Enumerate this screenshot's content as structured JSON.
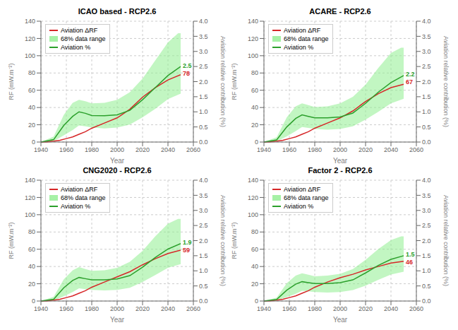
{
  "chart_data": [
    {
      "type": "line",
      "title": "ICAO based - RCP2.6",
      "xlabel": "Year",
      "ylabel": "RF (mW.m⁻²)",
      "y2label": "Aviation relative contribution (%)",
      "xlim": [
        1940,
        2060
      ],
      "xticks": [
        1940,
        1960,
        1980,
        2000,
        2020,
        2040,
        2060
      ],
      "ylim": [
        0,
        140
      ],
      "yticks": [
        0,
        20,
        40,
        60,
        80,
        100,
        120,
        140
      ],
      "y2lim": [
        0,
        4.0
      ],
      "y2ticks": [
        {
          "value": 0,
          "label": "0.0"
        },
        0.5,
        {
          "value": 1,
          "label": "1.0"
        },
        1.5,
        {
          "value": 2,
          "label": "2.0"
        },
        2.5,
        {
          "value": 3,
          "label": "3.0"
        },
        3.5,
        {
          "value": 4,
          "label": "4.0"
        }
      ],
      "grid": true,
      "legend": "upper left",
      "series": [
        {
          "name": "Aviation ΔRF",
          "type": "line",
          "color": "#d62728",
          "x": [
            1940,
            1945,
            1950,
            1955,
            1960,
            1965,
            1970,
            1975,
            1980,
            1990,
            2000,
            2010,
            2020,
            2030,
            2040,
            2050
          ],
          "values": [
            0,
            0.3,
            1.0,
            2.0,
            4.0,
            6.0,
            9.0,
            12.0,
            16.0,
            22.0,
            28.0,
            38.0,
            52.0,
            63.0,
            72.0,
            78.0
          ]
        },
        {
          "name": "68% data range",
          "type": "band",
          "axis": "y2",
          "color": "#90ee90",
          "x_upper": [
            1940,
            1950,
            1958,
            1965,
            1970,
            1975,
            1980,
            1990,
            2000,
            2010,
            2020,
            2030,
            2040,
            2048,
            2050
          ],
          "upper": [
            0,
            0.18,
            0.9,
            1.3,
            1.4,
            1.35,
            1.28,
            1.3,
            1.4,
            1.65,
            2.1,
            2.7,
            3.3,
            3.6,
            3.6
          ],
          "x_lower": [
            1940,
            1950,
            1958,
            1965,
            1970,
            1975,
            1980,
            1990,
            2000,
            2010,
            2020,
            2030,
            2040,
            2050
          ],
          "lower": [
            0,
            0.03,
            0.22,
            0.4,
            0.55,
            0.52,
            0.48,
            0.45,
            0.48,
            0.58,
            0.82,
            1.1,
            1.42,
            1.6
          ]
        },
        {
          "name": "Aviation %",
          "type": "line",
          "axis": "y2",
          "color": "#2ca02c",
          "x": [
            1940,
            1950,
            1958,
            1965,
            1970,
            1975,
            1980,
            1990,
            2000,
            2010,
            2020,
            2030,
            2040,
            2050
          ],
          "values": [
            0,
            0.08,
            0.55,
            0.85,
            1.0,
            0.95,
            0.88,
            0.87,
            0.9,
            1.05,
            1.4,
            1.8,
            2.2,
            2.5
          ]
        }
      ],
      "annotations": [
        {
          "text": "2.5",
          "color": "#2ca02c"
        },
        {
          "text": "78",
          "color": "#d62728"
        }
      ]
    },
    {
      "type": "line",
      "title": "ACARE - RCP2.6",
      "xlabel": "Year",
      "ylabel": "RF (mW.m⁻²)",
      "y2label": "Aviation relative contribution (%)",
      "xlim": [
        1940,
        2060
      ],
      "xticks": [
        1940,
        1960,
        1980,
        2000,
        2020,
        2040,
        2060
      ],
      "ylim": [
        0,
        140
      ],
      "yticks": [
        0,
        20,
        40,
        60,
        80,
        100,
        120,
        140
      ],
      "y2lim": [
        0,
        4.0
      ],
      "y2ticks": [
        {
          "value": 0,
          "label": "0.0"
        },
        0.5,
        {
          "value": 1,
          "label": "1.0"
        },
        1.5,
        {
          "value": 2,
          "label": "2.0"
        },
        2.5,
        {
          "value": 3,
          "label": "3.0"
        },
        3.5,
        {
          "value": 4,
          "label": "4.0"
        }
      ],
      "grid": true,
      "legend": "upper left",
      "series": [
        {
          "name": "Aviation ΔRF",
          "type": "line",
          "color": "#d62728",
          "x": [
            1940,
            1945,
            1950,
            1955,
            1960,
            1965,
            1970,
            1975,
            1980,
            1990,
            2000,
            2010,
            2020,
            2030,
            2040,
            2050
          ],
          "values": [
            0,
            0.3,
            1.0,
            2.0,
            4.0,
            6.0,
            9.0,
            12.0,
            16.0,
            22.0,
            28.0,
            36.0,
            47.0,
            56.0,
            63.0,
            67.0
          ]
        },
        {
          "name": "68% data range",
          "type": "band",
          "axis": "y2",
          "color": "#90ee90",
          "x_upper": [
            1940,
            1950,
            1958,
            1965,
            1970,
            1975,
            1980,
            1990,
            2000,
            2010,
            2020,
            2030,
            2040,
            2048,
            2050
          ],
          "upper": [
            0,
            0.16,
            0.82,
            1.18,
            1.28,
            1.22,
            1.16,
            1.18,
            1.28,
            1.5,
            1.9,
            2.45,
            2.95,
            3.12,
            3.12
          ],
          "x_lower": [
            1940,
            1950,
            1958,
            1965,
            1970,
            1975,
            1980,
            1990,
            2000,
            2010,
            2020,
            2030,
            2040,
            2050
          ],
          "lower": [
            0,
            0.025,
            0.19,
            0.36,
            0.5,
            0.47,
            0.43,
            0.41,
            0.43,
            0.52,
            0.74,
            1.0,
            1.28,
            1.43
          ]
        },
        {
          "name": "Aviation %",
          "type": "line",
          "axis": "y2",
          "color": "#2ca02c",
          "x": [
            1940,
            1950,
            1958,
            1965,
            1970,
            1975,
            1980,
            1990,
            2000,
            2010,
            2020,
            2030,
            2040,
            2050
          ],
          "values": [
            0,
            0.07,
            0.5,
            0.78,
            0.9,
            0.85,
            0.8,
            0.8,
            0.83,
            0.96,
            1.28,
            1.65,
            1.97,
            2.2
          ]
        }
      ],
      "annotations": [
        {
          "text": "2.2",
          "color": "#2ca02c"
        },
        {
          "text": "67",
          "color": "#d62728"
        }
      ]
    },
    {
      "type": "line",
      "title": "CNG2020 - RCP2.6",
      "xlabel": "Year",
      "ylabel": "RF (mW.m⁻²)",
      "y2label": "Aviation relative contribution (%)",
      "xlim": [
        1940,
        2060
      ],
      "xticks": [
        1940,
        1960,
        1980,
        2000,
        2020,
        2040,
        2060
      ],
      "ylim": [
        0,
        140
      ],
      "yticks": [
        0,
        20,
        40,
        60,
        80,
        100,
        120,
        140
      ],
      "y2lim": [
        0,
        4.0
      ],
      "y2ticks": [
        {
          "value": 0,
          "label": "0.0"
        },
        0.5,
        {
          "value": 1,
          "label": "1.0"
        },
        1.5,
        {
          "value": 2,
          "label": "2.0"
        },
        2.5,
        {
          "value": 3,
          "label": "3.0"
        },
        3.5,
        {
          "value": 4,
          "label": "4.0"
        }
      ],
      "grid": true,
      "legend": "upper left",
      "series": [
        {
          "name": "Aviation ΔRF",
          "type": "line",
          "color": "#d62728",
          "x": [
            1940,
            1945,
            1950,
            1955,
            1960,
            1965,
            1970,
            1975,
            1980,
            1990,
            2000,
            2010,
            2020,
            2030,
            2040,
            2050
          ],
          "values": [
            0,
            0.3,
            1.0,
            2.0,
            4.0,
            6.0,
            9.0,
            12.0,
            16.0,
            22.0,
            28.0,
            34.0,
            42.0,
            49.0,
            55.0,
            59.0
          ]
        },
        {
          "name": "68% data range",
          "type": "band",
          "axis": "y2",
          "color": "#90ee90",
          "x_upper": [
            1940,
            1950,
            1958,
            1965,
            1970,
            1975,
            1980,
            1990,
            2000,
            2010,
            2020,
            2030,
            2040,
            2048,
            2050
          ],
          "upper": [
            0,
            0.14,
            0.72,
            1.02,
            1.12,
            1.06,
            1.0,
            1.02,
            1.1,
            1.3,
            1.66,
            2.14,
            2.56,
            2.72,
            2.72
          ],
          "x_lower": [
            1940,
            1950,
            1958,
            1965,
            1970,
            1975,
            1980,
            1990,
            2000,
            2010,
            2020,
            2030,
            2040,
            2050
          ],
          "lower": [
            0,
            0.02,
            0.16,
            0.3,
            0.42,
            0.39,
            0.37,
            0.35,
            0.37,
            0.44,
            0.63,
            0.86,
            1.1,
            1.22
          ]
        },
        {
          "name": "Aviation %",
          "type": "line",
          "axis": "y2",
          "color": "#2ca02c",
          "x": [
            1940,
            1950,
            1958,
            1965,
            1970,
            1975,
            1980,
            1990,
            2000,
            2010,
            2020,
            2030,
            2040,
            2050
          ],
          "values": [
            0,
            0.06,
            0.44,
            0.68,
            0.78,
            0.74,
            0.7,
            0.7,
            0.73,
            0.84,
            1.12,
            1.44,
            1.72,
            1.9
          ]
        }
      ],
      "annotations": [
        {
          "text": "1.9",
          "color": "#2ca02c"
        },
        {
          "text": "59",
          "color": "#d62728"
        }
      ]
    },
    {
      "type": "line",
      "title": "Factor 2 - RCP2.6",
      "xlabel": "Year",
      "ylabel": "RF (mW.m⁻²)",
      "y2label": "Aviation relative contribution (%)",
      "xlim": [
        1940,
        2060
      ],
      "xticks": [
        1940,
        1960,
        1980,
        2000,
        2020,
        2040,
        2060
      ],
      "ylim": [
        0,
        140
      ],
      "yticks": [
        0,
        20,
        40,
        60,
        80,
        100,
        120,
        140
      ],
      "y2lim": [
        0,
        4.0
      ],
      "y2ticks": [
        {
          "value": 0,
          "label": "0.0"
        },
        0.5,
        {
          "value": 1,
          "label": "1.0"
        },
        1.5,
        {
          "value": 2,
          "label": "2.0"
        },
        2.5,
        {
          "value": 3,
          "label": "3.0"
        },
        3.5,
        {
          "value": 4,
          "label": "4.0"
        }
      ],
      "grid": true,
      "legend": "upper left",
      "series": [
        {
          "name": "Aviation ΔRF",
          "type": "line",
          "color": "#d62728",
          "x": [
            1940,
            1945,
            1950,
            1955,
            1960,
            1965,
            1970,
            1975,
            1980,
            1990,
            2000,
            2010,
            2020,
            2030,
            2040,
            2050
          ],
          "values": [
            0,
            0.3,
            1.0,
            2.0,
            4.0,
            6.0,
            9.0,
            12.0,
            16.0,
            22.0,
            27.0,
            31.0,
            36.0,
            40.0,
            44.0,
            46.0
          ]
        },
        {
          "name": "68% data range",
          "type": "band",
          "axis": "y2",
          "color": "#90ee90",
          "x_upper": [
            1940,
            1950,
            1958,
            1965,
            1970,
            1975,
            1980,
            1990,
            2000,
            2010,
            2020,
            2030,
            2040,
            2048,
            2050
          ],
          "upper": [
            0,
            0.11,
            0.59,
            0.84,
            0.92,
            0.87,
            0.82,
            0.84,
            0.9,
            1.06,
            1.36,
            1.72,
            2.02,
            2.14,
            2.14
          ],
          "x_lower": [
            1940,
            1950,
            1958,
            1965,
            1970,
            1975,
            1980,
            1990,
            2000,
            2010,
            2020,
            2030,
            2040,
            2050
          ],
          "lower": [
            0,
            0.016,
            0.13,
            0.24,
            0.34,
            0.32,
            0.3,
            0.28,
            0.3,
            0.36,
            0.51,
            0.7,
            0.88,
            0.97
          ]
        },
        {
          "name": "Aviation %",
          "type": "line",
          "axis": "y2",
          "color": "#2ca02c",
          "x": [
            1940,
            1950,
            1958,
            1965,
            1970,
            1975,
            1980,
            1990,
            2000,
            2010,
            2020,
            2030,
            2040,
            2050
          ],
          "values": [
            0,
            0.05,
            0.36,
            0.56,
            0.64,
            0.61,
            0.58,
            0.58,
            0.61,
            0.7,
            0.93,
            1.18,
            1.38,
            1.5
          ]
        }
      ],
      "annotations": [
        {
          "text": "1.5",
          "color": "#2ca02c"
        },
        {
          "text": "46",
          "color": "#d62728"
        }
      ]
    }
  ]
}
